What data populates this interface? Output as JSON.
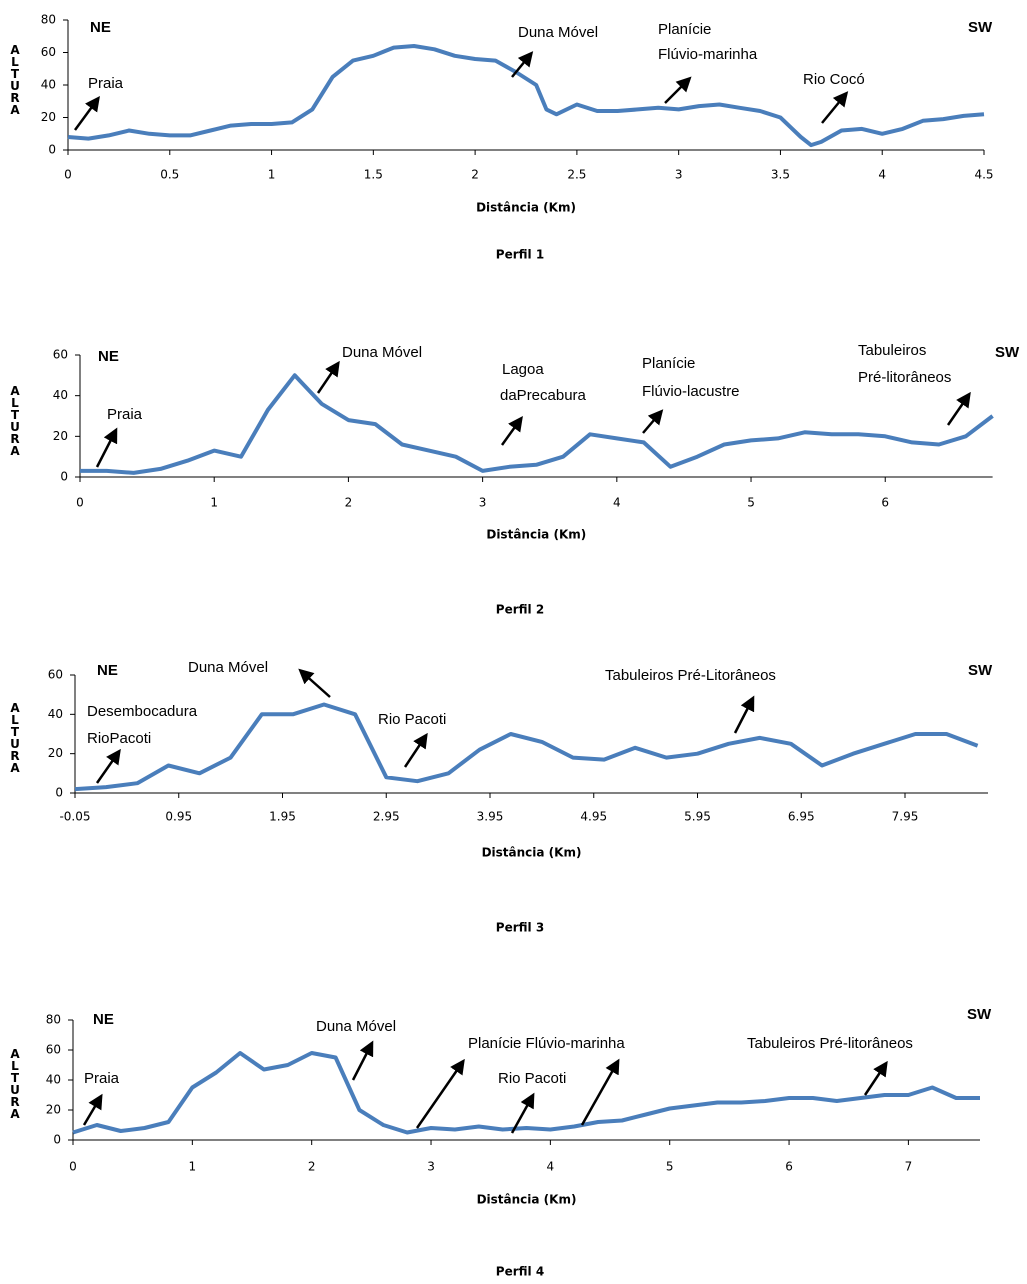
{
  "chart_data": [
    {
      "type": "line",
      "title": "Perfil 1",
      "x_label": "Distância (Km)",
      "y_label": "ALTURA",
      "color": "#4a7ebb",
      "xlim": [
        0,
        4.5
      ],
      "ylim": [
        0,
        80
      ],
      "xticks": [
        0,
        0.5,
        1,
        1.5,
        2,
        2.5,
        3,
        3.5,
        4,
        4.5
      ],
      "yticks": [
        0,
        20,
        40,
        60,
        80
      ],
      "annotations": [
        "NE",
        "SW",
        "Praia",
        "Duna Móvel",
        "Planície",
        "Flúvio-marinha",
        "Rio Cocó"
      ],
      "x": [
        0,
        0.1,
        0.2,
        0.3,
        0.4,
        0.5,
        0.6,
        0.7,
        0.8,
        0.9,
        1.0,
        1.1,
        1.2,
        1.3,
        1.4,
        1.5,
        1.6,
        1.7,
        1.8,
        1.9,
        2.0,
        2.1,
        2.2,
        2.3,
        2.35,
        2.4,
        2.5,
        2.6,
        2.7,
        2.8,
        2.9,
        3.0,
        3.1,
        3.2,
        3.3,
        3.4,
        3.5,
        3.6,
        3.65,
        3.7,
        3.8,
        3.9,
        4.0,
        4.1,
        4.2,
        4.3,
        4.4,
        4.5
      ],
      "values": [
        8,
        7,
        9,
        12,
        10,
        9,
        9,
        12,
        15,
        16,
        16,
        17,
        25,
        45,
        55,
        58,
        63,
        64,
        62,
        58,
        56,
        55,
        48,
        40,
        25,
        22,
        28,
        24,
        24,
        25,
        26,
        25,
        27,
        28,
        26,
        24,
        20,
        8,
        3,
        5,
        12,
        13,
        10,
        13,
        18,
        19,
        21,
        22
      ]
    },
    {
      "type": "line",
      "title": "Perfil 2",
      "x_label": "Distância (Km)",
      "y_label": "ALTURA",
      "color": "#4a7ebb",
      "xlim": [
        0,
        6.8
      ],
      "ylim": [
        0,
        60
      ],
      "xticks": [
        0,
        1,
        2,
        3,
        4,
        5,
        6
      ],
      "yticks": [
        0,
        20,
        40,
        60
      ],
      "annotations": [
        "NE",
        "SW",
        "Praia",
        "Duna Móvel",
        "Lagoa",
        "daPrecabura",
        "Planície",
        "Flúvio-lacustre",
        "Tabuleiros",
        "Pré-litorâneos"
      ],
      "x": [
        0,
        0.2,
        0.4,
        0.6,
        0.8,
        1.0,
        1.2,
        1.4,
        1.6,
        1.8,
        2.0,
        2.2,
        2.4,
        2.6,
        2.8,
        3.0,
        3.2,
        3.4,
        3.6,
        3.8,
        4.0,
        4.2,
        4.4,
        4.6,
        4.8,
        5.0,
        5.2,
        5.4,
        5.6,
        5.8,
        6.0,
        6.2,
        6.4,
        6.6,
        6.8
      ],
      "values": [
        3,
        3,
        2,
        4,
        8,
        13,
        10,
        33,
        50,
        36,
        28,
        26,
        16,
        13,
        10,
        3,
        5,
        6,
        10,
        21,
        19,
        17,
        5,
        10,
        16,
        18,
        19,
        22,
        21,
        21,
        20,
        17,
        16,
        20,
        30
      ]
    },
    {
      "type": "line",
      "title": "Perfil 3",
      "x_label": "Distância (Km)",
      "y_label": "ALTURA",
      "color": "#4a7ebb",
      "xlim": [
        -0.05,
        8.75
      ],
      "ylim": [
        0,
        60
      ],
      "xticks": [
        -0.05,
        0.95,
        1.95,
        2.95,
        3.95,
        4.95,
        5.95,
        6.95,
        7.95
      ],
      "yticks": [
        0,
        20,
        40,
        60
      ],
      "annotations": [
        "NE",
        "SW",
        "Duna Móvel",
        "Desembocadura",
        "RioPacoti",
        "Rio Pacoti",
        "Tabuleiros Pré-Litorâneos"
      ],
      "x": [
        -0.05,
        0.25,
        0.55,
        0.85,
        1.15,
        1.45,
        1.75,
        2.05,
        2.35,
        2.65,
        2.95,
        3.25,
        3.55,
        3.85,
        4.15,
        4.45,
        4.75,
        5.05,
        5.35,
        5.65,
        5.95,
        6.25,
        6.55,
        6.85,
        7.15,
        7.45,
        7.75,
        8.05,
        8.35,
        8.65
      ],
      "values": [
        2,
        3,
        5,
        14,
        10,
        18,
        40,
        40,
        45,
        40,
        8,
        6,
        10,
        22,
        30,
        26,
        18,
        17,
        23,
        18,
        20,
        25,
        28,
        25,
        14,
        20,
        25,
        30,
        30,
        24
      ]
    },
    {
      "type": "line",
      "title": "Perfil 4",
      "x_label": "Distância (Km)",
      "y_label": "ALTURA",
      "color": "#4a7ebb",
      "xlim": [
        0,
        7.6
      ],
      "ylim": [
        0,
        80
      ],
      "xticks": [
        0,
        1,
        2,
        3,
        4,
        5,
        6,
        7
      ],
      "yticks": [
        0,
        20,
        40,
        60,
        80
      ],
      "annotations": [
        "NE",
        "SW",
        "Praia",
        "Duna Móvel",
        "Planície Flúvio-marinha",
        "Rio Pacoti",
        "Tabuleiros Pré-litorâneos"
      ],
      "x": [
        0,
        0.2,
        0.4,
        0.6,
        0.8,
        1.0,
        1.2,
        1.4,
        1.6,
        1.8,
        2.0,
        2.2,
        2.4,
        2.6,
        2.8,
        3.0,
        3.2,
        3.4,
        3.6,
        3.8,
        4.0,
        4.2,
        4.4,
        4.6,
        4.8,
        5.0,
        5.2,
        5.4,
        5.6,
        5.8,
        6.0,
        6.2,
        6.4,
        6.6,
        6.8,
        7.0,
        7.2,
        7.4,
        7.6
      ],
      "values": [
        5,
        10,
        6,
        8,
        12,
        35,
        45,
        58,
        47,
        50,
        58,
        55,
        20,
        10,
        5,
        8,
        7,
        9,
        7,
        8,
        7,
        9,
        12,
        13,
        17,
        21,
        23,
        25,
        25,
        26,
        28,
        28,
        26,
        28,
        30,
        30,
        35,
        28,
        28
      ]
    }
  ]
}
